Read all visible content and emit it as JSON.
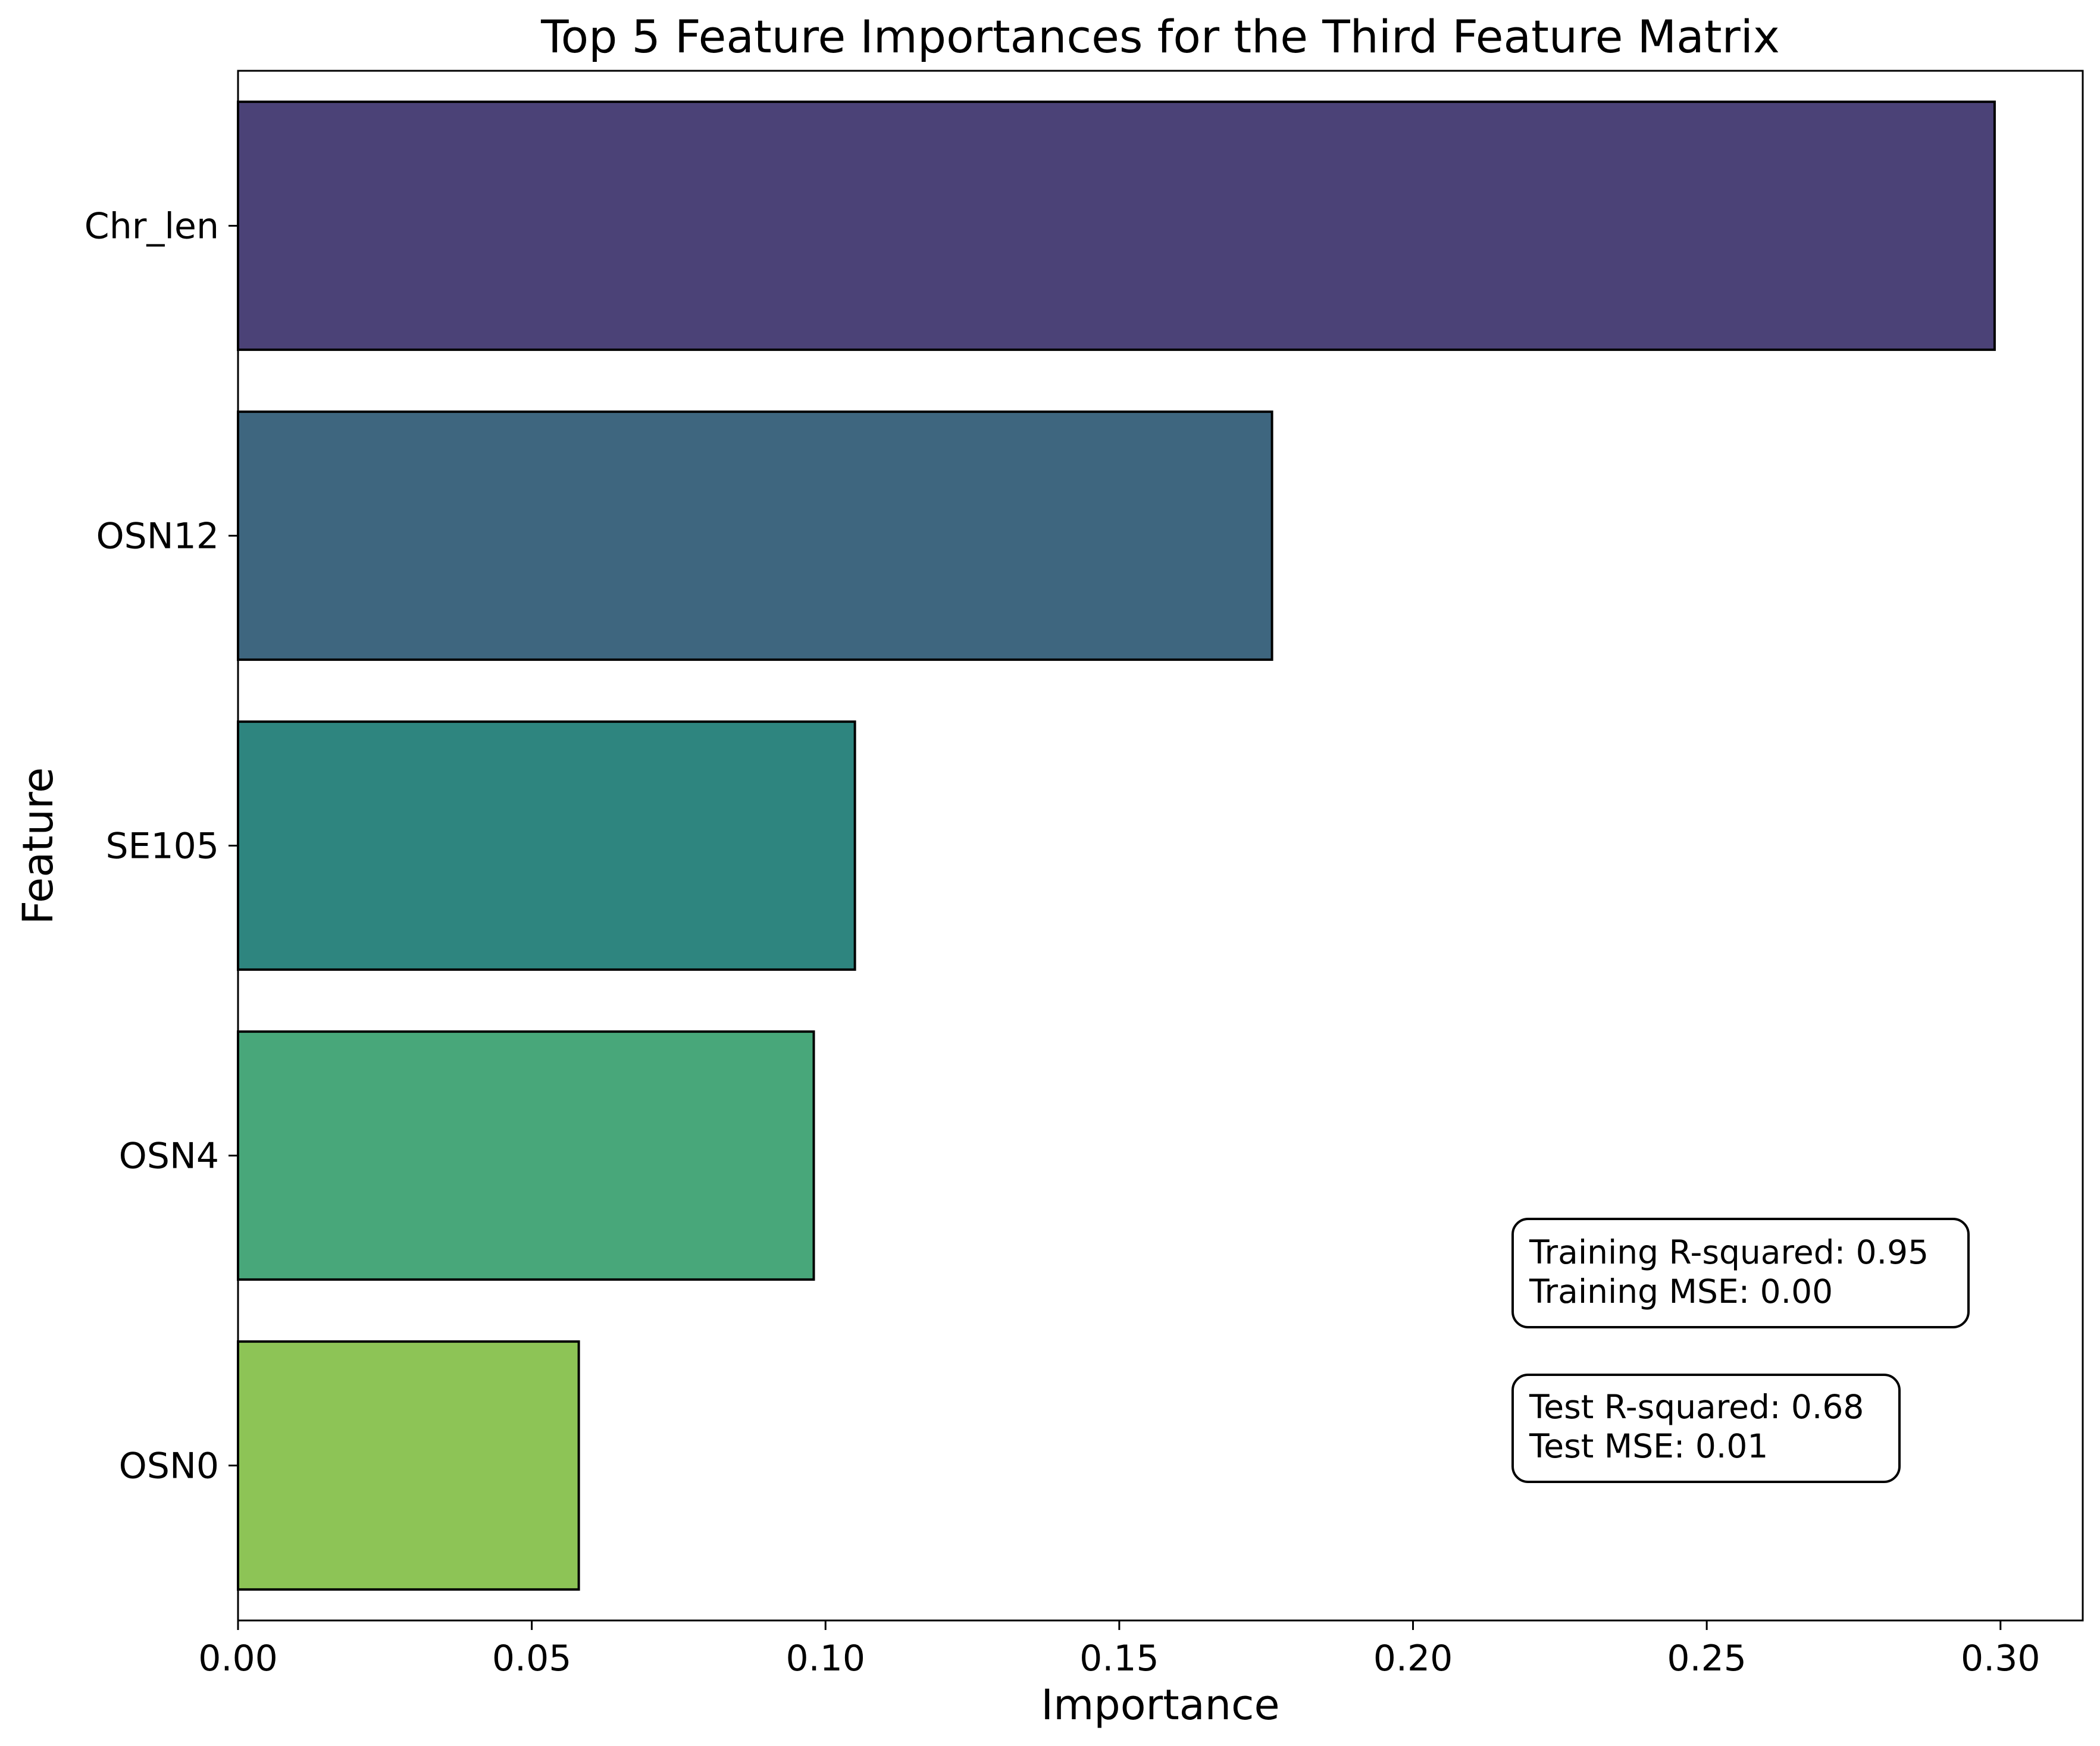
{
  "chart_data": {
    "type": "bar",
    "orientation": "horizontal",
    "title": "Top 5 Feature Importances for the Third Feature Matrix",
    "xlabel": "Importance",
    "ylabel": "Feature",
    "categories": [
      "Chr_len",
      "OSN12",
      "SE105",
      "OSN4",
      "OSN0"
    ],
    "values": [
      0.299,
      0.176,
      0.105,
      0.098,
      0.058
    ],
    "colors": [
      "#4b4277",
      "#3e667f",
      "#2e857f",
      "#48a77a",
      "#8dc456"
    ],
    "xlim": [
      0,
      0.314
    ],
    "xticks": [
      0,
      0.05,
      0.1,
      0.15,
      0.2,
      0.25,
      0.3
    ],
    "xtick_labels": [
      "0.00",
      "0.05",
      "0.10",
      "0.15",
      "0.20",
      "0.25",
      "0.30"
    ],
    "grid": false,
    "annotations": [
      {
        "lines": [
          "Training R-squared: 0.95",
          "Training MSE: 0.00"
        ]
      },
      {
        "lines": [
          "Test R-squared: 0.68",
          "Test MSE: 0.01"
        ]
      }
    ]
  }
}
